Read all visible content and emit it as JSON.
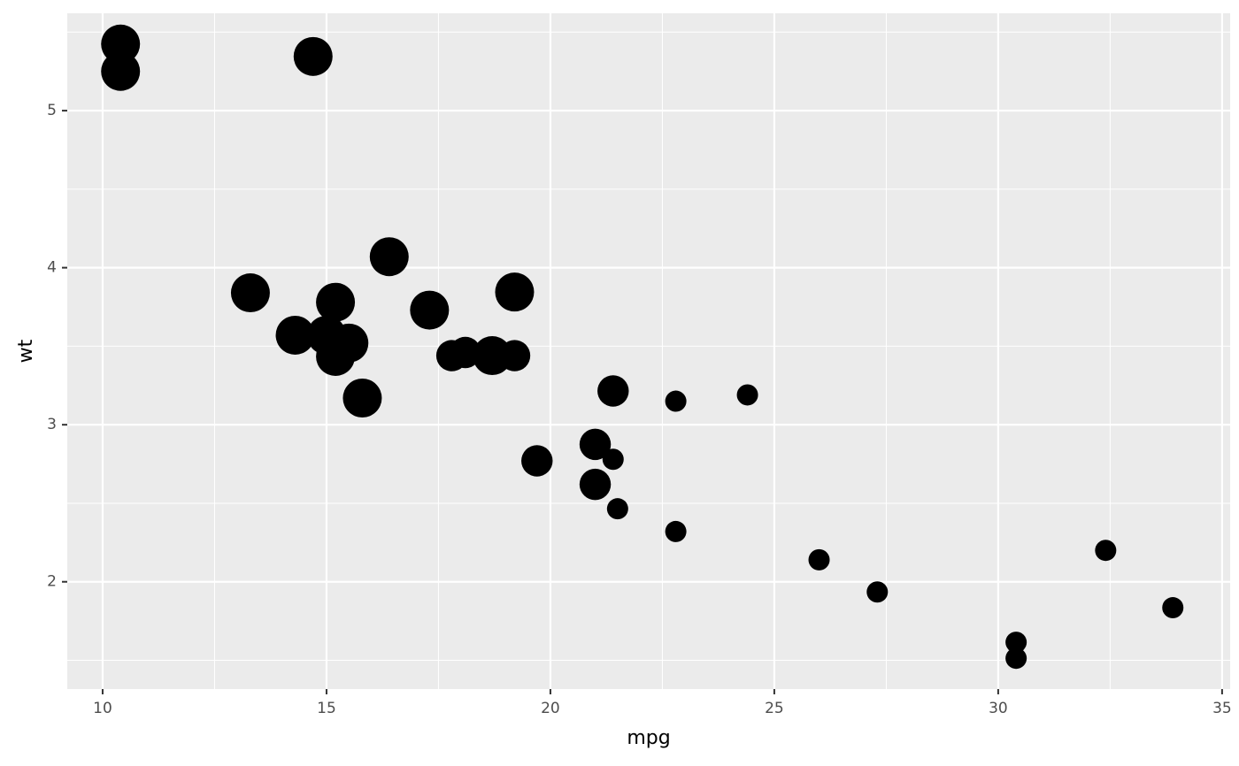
{
  "chart_data": {
    "type": "scatter",
    "x_label": "mpg",
    "y_label": "wt",
    "x": [
      21.0,
      21.0,
      22.8,
      21.4,
      18.7,
      18.1,
      14.3,
      24.4,
      22.8,
      19.2,
      17.8,
      16.4,
      17.3,
      15.2,
      10.4,
      10.4,
      14.7,
      32.4,
      30.4,
      33.9,
      21.5,
      15.5,
      15.2,
      13.3,
      19.2,
      27.3,
      26.0,
      30.4,
      15.8,
      19.7,
      15.0,
      21.4
    ],
    "values": [
      2.62,
      2.875,
      2.32,
      3.215,
      3.44,
      3.46,
      3.57,
      3.19,
      3.15,
      3.44,
      3.44,
      4.07,
      3.73,
      3.78,
      5.25,
      5.424,
      5.345,
      2.2,
      1.615,
      1.835,
      2.465,
      3.52,
      3.435,
      3.84,
      3.845,
      1.935,
      2.14,
      1.513,
      3.17,
      2.77,
      3.57,
      2.78
    ],
    "sizes": [
      6,
      6,
      4,
      6,
      8,
      6,
      8,
      4,
      4,
      6,
      6,
      8,
      8,
      8,
      8,
      8,
      8,
      4,
      4,
      4,
      4,
      8,
      8,
      8,
      8,
      4,
      4,
      4,
      8,
      6,
      8,
      4
    ],
    "color": "#000000",
    "xlim": [
      9.21,
      35.18
    ],
    "ylim": [
      1.317,
      5.62
    ],
    "xticks": [
      10,
      15,
      20,
      25,
      30,
      35
    ],
    "yticks": [
      2,
      3,
      4,
      5
    ],
    "grid": true
  }
}
